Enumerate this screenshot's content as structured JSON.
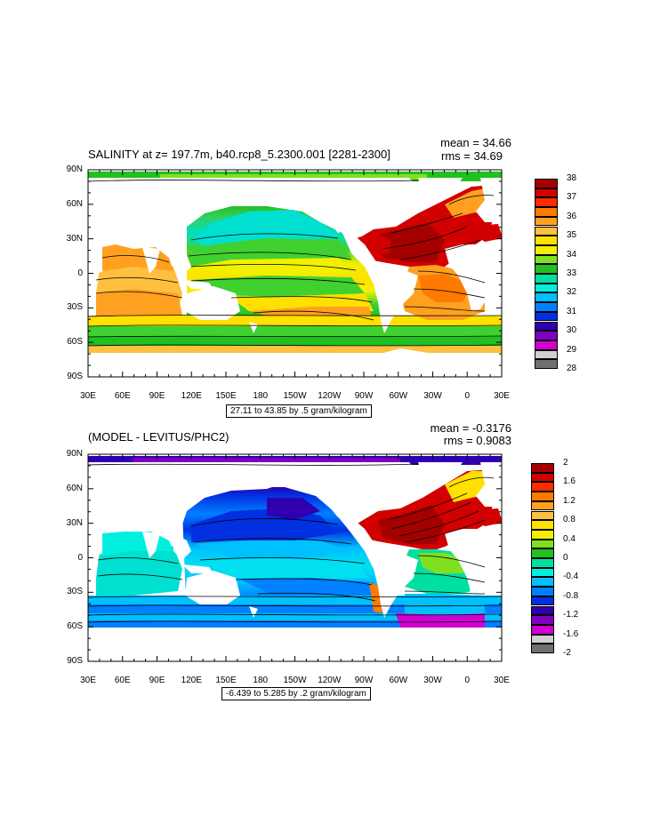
{
  "panels": [
    {
      "title": "SALINITY at z= 197.7m, b40.rcp8_5.2300.001 [2281-2300]",
      "mean": "mean = 34.66",
      "rms": "rms = 34.69",
      "info": "27.11 to 43.85 by .5 gram/kilogram",
      "lat_labels": [
        "90N",
        "60N",
        "30N",
        "0",
        "30S",
        "60S",
        "90S"
      ],
      "lon_labels": [
        "30E",
        "60E",
        "90E",
        "120E",
        "150E",
        "180",
        "150W",
        "120W",
        "90W",
        "60W",
        "30W",
        "0",
        "30E"
      ],
      "colorbar": {
        "labels": [
          "38",
          "37",
          "36",
          "35",
          "34",
          "33",
          "32",
          "31",
          "30",
          "29",
          "28"
        ],
        "colors": [
          "#a50000",
          "#d20000",
          "#ff2a00",
          "#ff7a00",
          "#ffa020",
          "#ffc040",
          "#ffe000",
          "#f0f000",
          "#80e020",
          "#20c020",
          "#00e0a0",
          "#00f0e0",
          "#00c0ff",
          "#0080ff",
          "#0030e0",
          "#3000b0",
          "#8000c0",
          "#d000d0",
          "#d0d0d0",
          "#707070"
        ]
      }
    },
    {
      "title": "(MODEL - LEVITUS/PHC2)",
      "mean": "mean = -0.3176",
      "rms": "rms = 0.9083",
      "info": "-6.439 to 5.285 by .2 gram/kilogram",
      "lat_labels": [
        "90N",
        "60N",
        "30N",
        "0",
        "30S",
        "60S",
        "90S"
      ],
      "lon_labels": [
        "30E",
        "60E",
        "90E",
        "120E",
        "150E",
        "180",
        "150W",
        "120W",
        "90W",
        "60W",
        "30W",
        "0",
        "30E"
      ],
      "colorbar": {
        "labels": [
          "2",
          "1.6",
          "1.2",
          "0.8",
          "0.4",
          "0",
          "-0.4",
          "-0.8",
          "-1.2",
          "-1.6",
          "-2"
        ],
        "colors": [
          "#a50000",
          "#d20000",
          "#ff2a00",
          "#ff7a00",
          "#ffa020",
          "#ffc040",
          "#ffe000",
          "#f0f000",
          "#80e020",
          "#20c020",
          "#00e0a0",
          "#00f0e0",
          "#00c0ff",
          "#0080ff",
          "#0030e0",
          "#3000b0",
          "#8000c0",
          "#d000d0",
          "#d0d0d0",
          "#707070"
        ]
      }
    }
  ]
}
